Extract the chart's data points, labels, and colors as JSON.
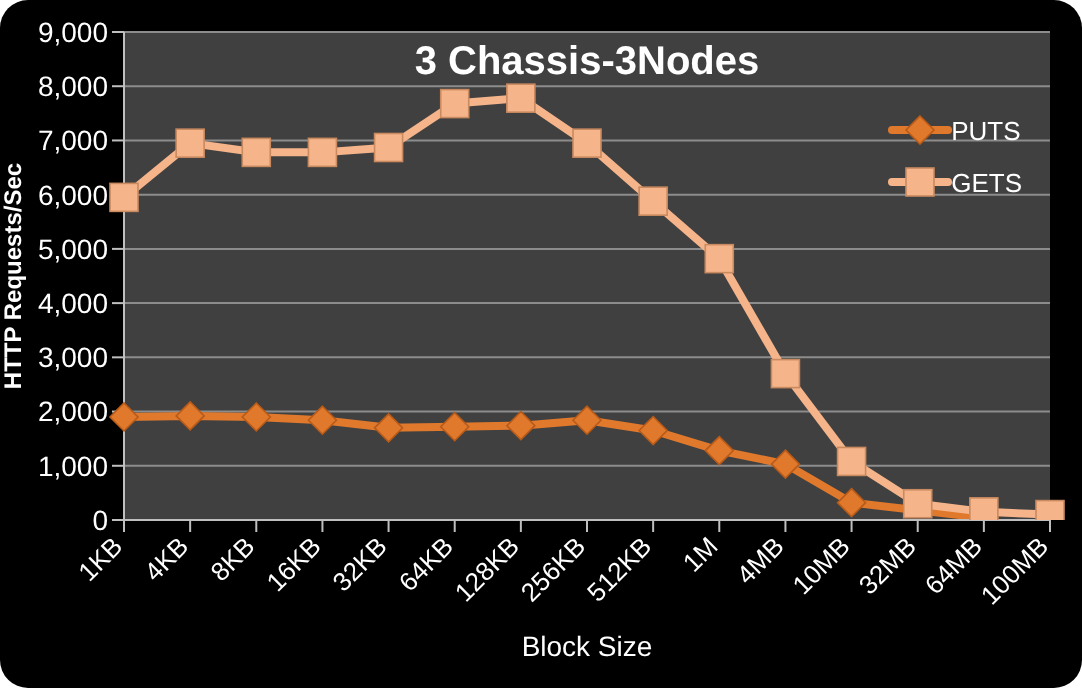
{
  "chart_data": {
    "type": "line",
    "title": "3 Chassis-3Nodes",
    "xlabel": "Block Size",
    "ylabel": "HTTP Requests/Sec",
    "categories": [
      "1KB",
      "4KB",
      "8KB",
      "16KB",
      "32KB",
      "64KB",
      "128KB",
      "256KB",
      "512KB",
      "1M",
      "4MB",
      "10MB",
      "32MB",
      "64MB",
      "100MB"
    ],
    "series": [
      {
        "name": "PUTS",
        "color": "#e0792c",
        "marker": "diamond",
        "values": [
          1900,
          1920,
          1900,
          1840,
          1700,
          1720,
          1740,
          1840,
          1650,
          1280,
          1030,
          320,
          null,
          40,
          null
        ]
      },
      {
        "name": "GETS",
        "color": "#f5b48a",
        "marker": "square",
        "values": [
          5950,
          6950,
          6780,
          6780,
          6870,
          7680,
          7780,
          6950,
          5880,
          4820,
          2700,
          1080,
          300,
          150,
          100
        ]
      }
    ],
    "ylim": [
      0,
      9000
    ],
    "yticks": [
      0,
      {
        "value": 1000,
        "label": "1,000"
      },
      {
        "value": 2000,
        "label": "2,000"
      },
      {
        "value": 3000,
        "label": "3,000"
      },
      {
        "value": 4000,
        "label": "4,000"
      },
      {
        "value": 5000,
        "label": "5,000"
      },
      {
        "value": 6000,
        "label": "6,000"
      },
      {
        "value": 7000,
        "label": "7,000"
      },
      {
        "value": 8000,
        "label": "8,000"
      },
      {
        "value": 9000,
        "label": "9,000"
      }
    ],
    "grid": "y",
    "legend": "top right",
    "line_style": "solid"
  }
}
